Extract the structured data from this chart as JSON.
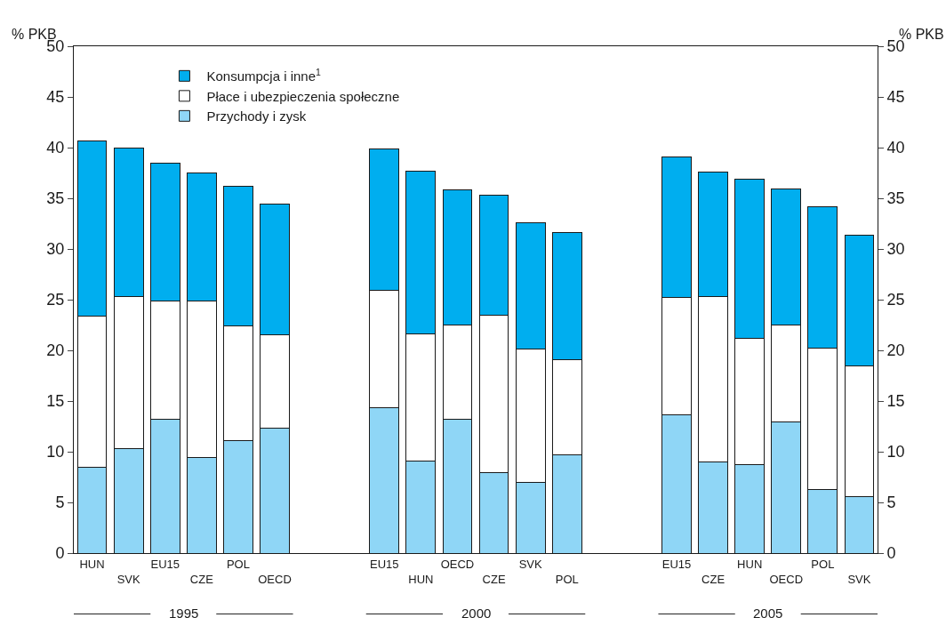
{
  "chart_data": {
    "type": "bar",
    "stacked": true,
    "ylabel": "% PKB",
    "y2label": "% PKB",
    "categories": [
      "HUN",
      "SVK",
      "EU15",
      "CZE",
      "POL",
      "OECD",
      null,
      null,
      "EU15",
      "HUN",
      "OECD",
      "CZE",
      "SVK",
      "POL",
      null,
      null,
      "EU15",
      "CZE",
      "HUN",
      "OECD",
      "POL",
      "SVK"
    ],
    "series": [
      {
        "name": "Przychody i zysk",
        "color": "#8fd6f6",
        "values": [
          8.5,
          10.3,
          13.2,
          9.4,
          11.1,
          12.3,
          null,
          null,
          14.3,
          9.1,
          13.2,
          7.9,
          7.0,
          9.7,
          null,
          null,
          13.6,
          9.0,
          8.7,
          12.9,
          6.3,
          5.6
        ]
      },
      {
        "name": "Płace i ubezpieczenia społeczne",
        "color": "#ffffff",
        "values": [
          14.9,
          15.0,
          11.7,
          15.5,
          11.3,
          9.2,
          null,
          null,
          11.6,
          12.5,
          9.3,
          15.6,
          13.1,
          9.4,
          null,
          null,
          11.6,
          16.3,
          12.5,
          9.6,
          13.9,
          12.9
        ]
      },
      {
        "name": "Konsumpcja i inne$^{1}$",
        "color": "#00aeef",
        "values": [
          17.3,
          14.7,
          13.6,
          12.6,
          13.8,
          12.9,
          null,
          null,
          14.0,
          16.1,
          13.3,
          11.8,
          12.5,
          12.5,
          null,
          null,
          13.9,
          12.3,
          15.7,
          13.4,
          14.0,
          12.9
        ]
      }
    ],
    "ylim": [
      0,
      50
    ],
    "yticks": [
      0,
      5,
      10,
      15,
      20,
      25,
      30,
      35,
      40,
      45,
      50
    ],
    "y2lim": [
      0,
      50
    ],
    "y2ticks": [
      0,
      5,
      10,
      15,
      20,
      25,
      30,
      35,
      40,
      45,
      50
    ],
    "annotations": [
      "1995",
      "2000",
      "2005"
    ],
    "grid": false,
    "legend": "top left"
  }
}
